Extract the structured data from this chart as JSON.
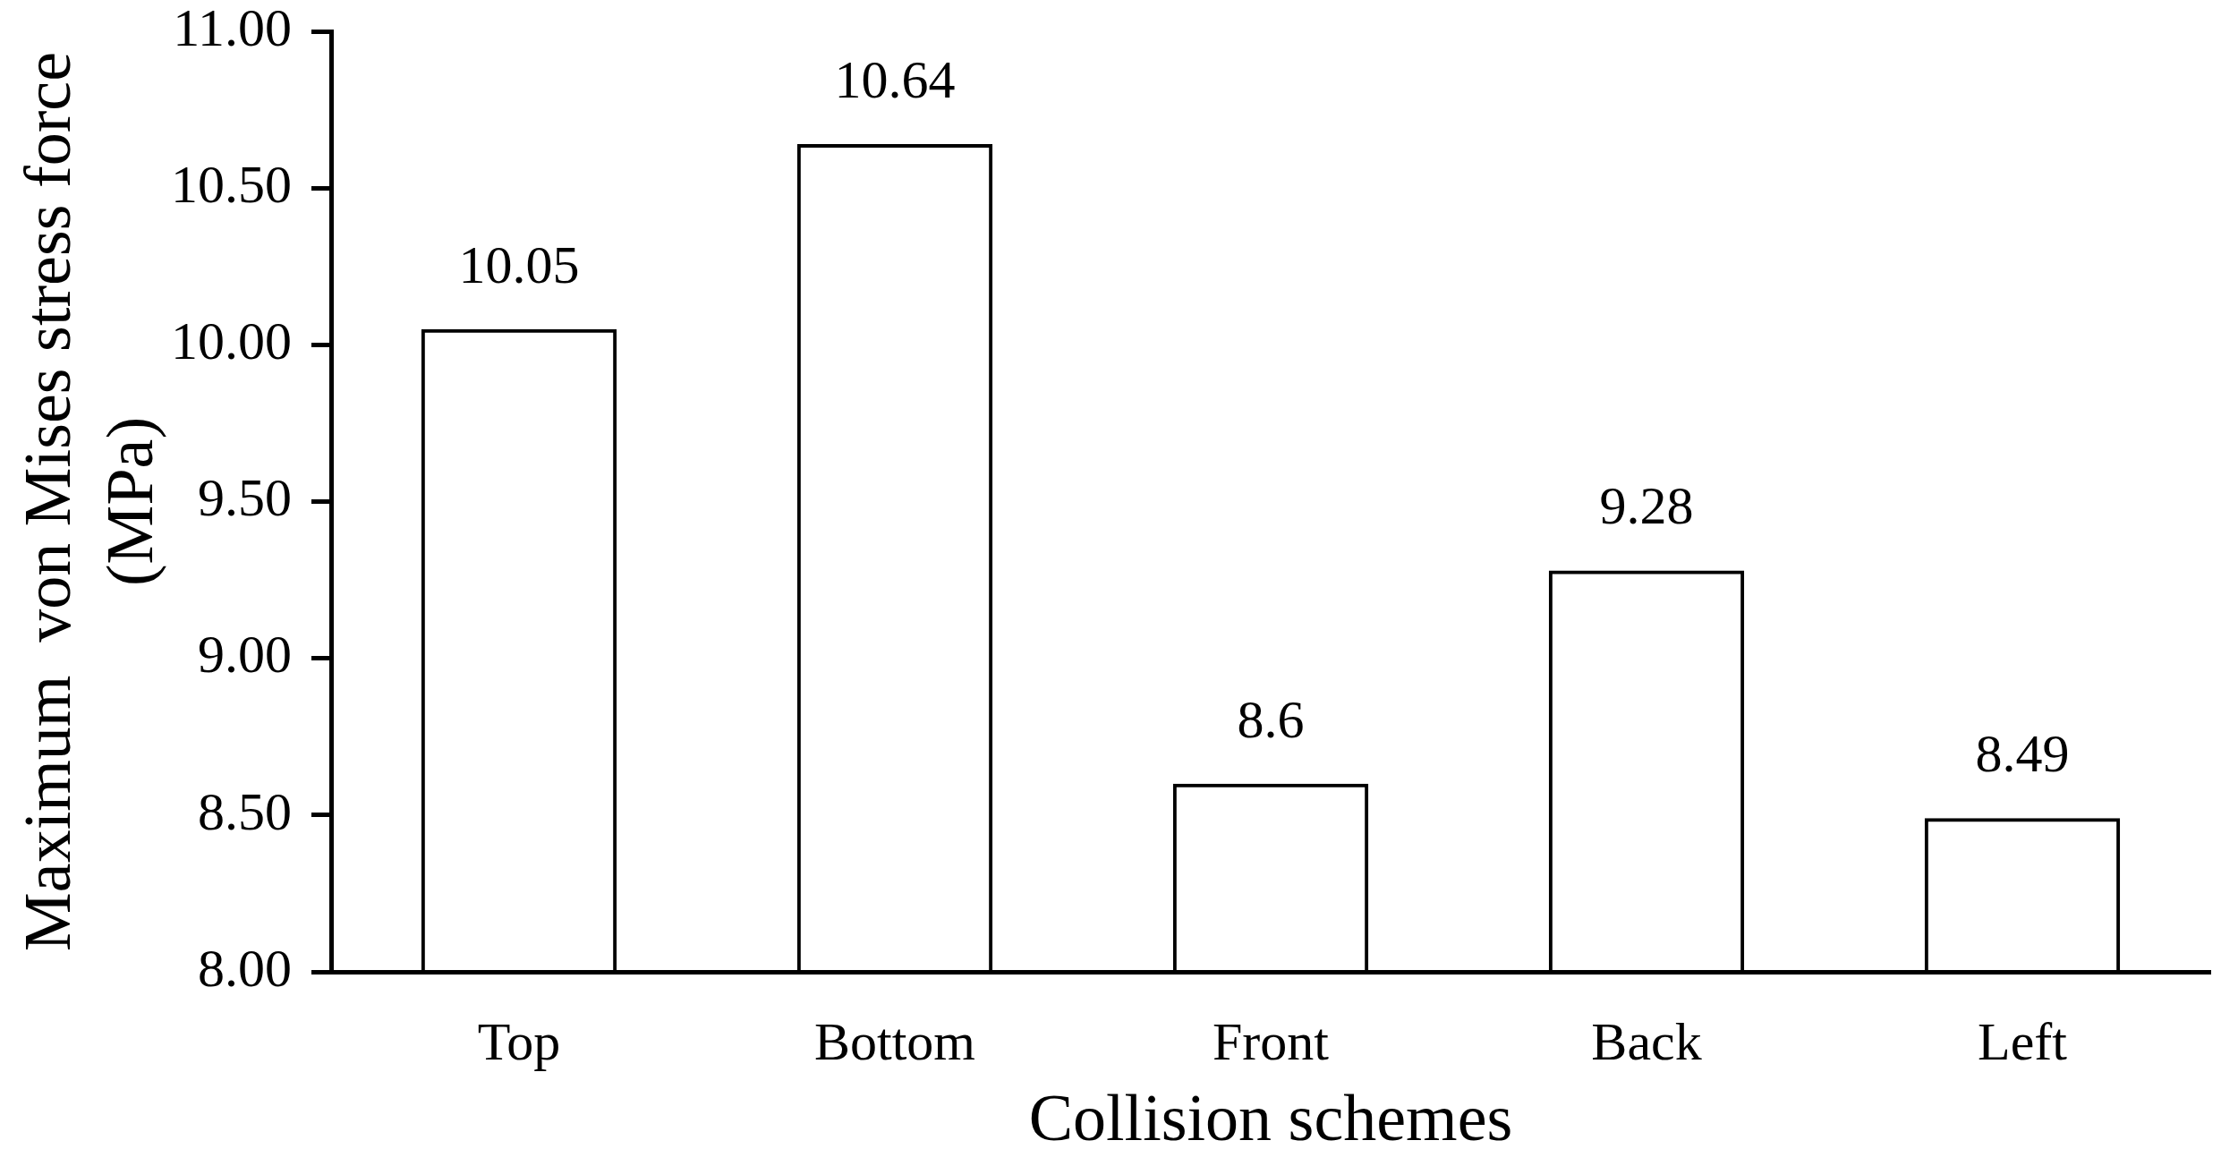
{
  "chart_data": {
    "type": "bar",
    "categories": [
      "Top",
      "Bottom",
      "Front",
      "Back",
      "Left"
    ],
    "values": [
      10.05,
      10.64,
      8.6,
      9.28,
      8.49
    ],
    "color": "#000000",
    "xlabel": "Collision schemes",
    "ylabel": "Maximum  von Mises stress force (MPa)",
    "ylim": [
      8,
      11
    ],
    "yticks": [
      {
        "value": 8,
        "label": "8.00"
      },
      {
        "value": 8.5,
        "label": "8.50"
      },
      {
        "value": 9,
        "label": "9.00"
      },
      {
        "value": 9.5,
        "label": "9.50"
      },
      {
        "value": 10,
        "label": "10.00"
      },
      {
        "value": 10.5,
        "label": "10.50"
      },
      {
        "value": 11,
        "label": "11.00"
      }
    ],
    "grid": false,
    "data_labels": true
  }
}
